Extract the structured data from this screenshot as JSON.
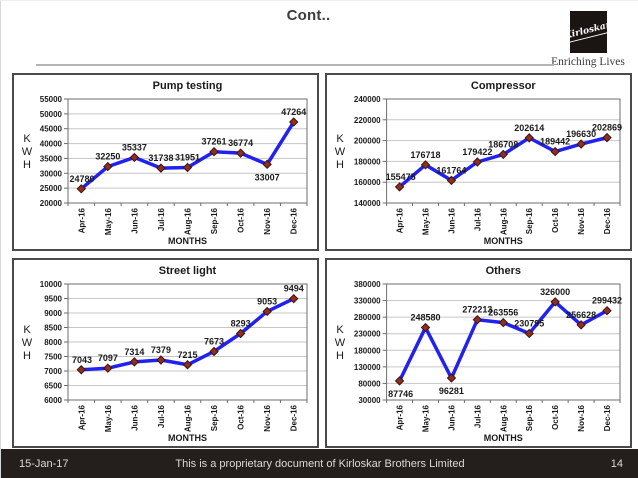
{
  "slide": {
    "title": "Cont..",
    "logo": {
      "brand": "Kirloskar",
      "tagline": "Enriching Lives"
    },
    "footer": {
      "date": "15-Jan-17",
      "text": "This is a proprietary document of Kirloskar Brothers Limited",
      "page": "14"
    }
  },
  "colors": {
    "line": "#2222ee",
    "marker_fill": "#8e2f23",
    "marker_edge": "#3f120a",
    "grid": "#c6c6c6",
    "plot_border": "#6e6e6e",
    "text": "#1a1a1a"
  },
  "chart_data": [
    {
      "type": "line",
      "title": "Pump testing",
      "ylabel": "KWH",
      "xlabel": "MONTHS",
      "categories": [
        "Apr-16",
        "May-16",
        "Jun-16",
        "Jul-16",
        "Aug-16",
        "Sep-16",
        "Oct-16",
        "Nov-16",
        "Dec-16"
      ],
      "values": [
        24780,
        32250,
        35337,
        31738,
        31951,
        37261,
        36774,
        33007,
        47264
      ],
      "ylim": [
        20000,
        55000
      ],
      "ytick_step": 5000,
      "grid": true,
      "legend": "none",
      "labels_below": [
        7
      ]
    },
    {
      "type": "line",
      "title": "Compressor",
      "ylabel": "KWH",
      "xlabel": "MONTHS",
      "categories": [
        "Apr-16",
        "May-16",
        "Jun-16",
        "Jul-16",
        "Aug-16",
        "Sep-16",
        "Oct-16",
        "Nov-16",
        "Dec-16"
      ],
      "values": [
        155475,
        176718,
        161764,
        179422,
        186708,
        202614,
        189442,
        196630,
        202869
      ],
      "ylim": [
        140000,
        240000
      ],
      "ytick_step": 20000,
      "grid": true,
      "legend": "none",
      "labels_below": []
    },
    {
      "type": "line",
      "title": "Street light",
      "ylabel": "KWH",
      "xlabel": "MONTHS",
      "categories": [
        "Apr-16",
        "May-16",
        "Jun-16",
        "Jul-16",
        "Aug-16",
        "Sep-16",
        "Oct-16",
        "Nov-16",
        "Dec-16"
      ],
      "values": [
        7043,
        7097,
        7314,
        7379,
        7215,
        7673,
        8293,
        9053,
        9494
      ],
      "ylim": [
        6000,
        10000
      ],
      "ytick_step": 500,
      "grid": true,
      "legend": "none",
      "labels_below": []
    },
    {
      "type": "line",
      "title": "Others",
      "ylabel": "KWH",
      "xlabel": "MONTHS",
      "categories": [
        "Apr-16",
        "May-16",
        "Jun-16",
        "Jul-16",
        "Aug-16",
        "Sep-16",
        "Oct-16",
        "Nov-16",
        "Dec-16"
      ],
      "values": [
        87746,
        248580,
        96281,
        272213,
        263556,
        230795,
        326000,
        256628,
        299432
      ],
      "ylim": [
        30000,
        380000
      ],
      "ytick_step": 50000,
      "grid": true,
      "legend": "none",
      "labels_below": [
        0,
        2
      ]
    }
  ]
}
